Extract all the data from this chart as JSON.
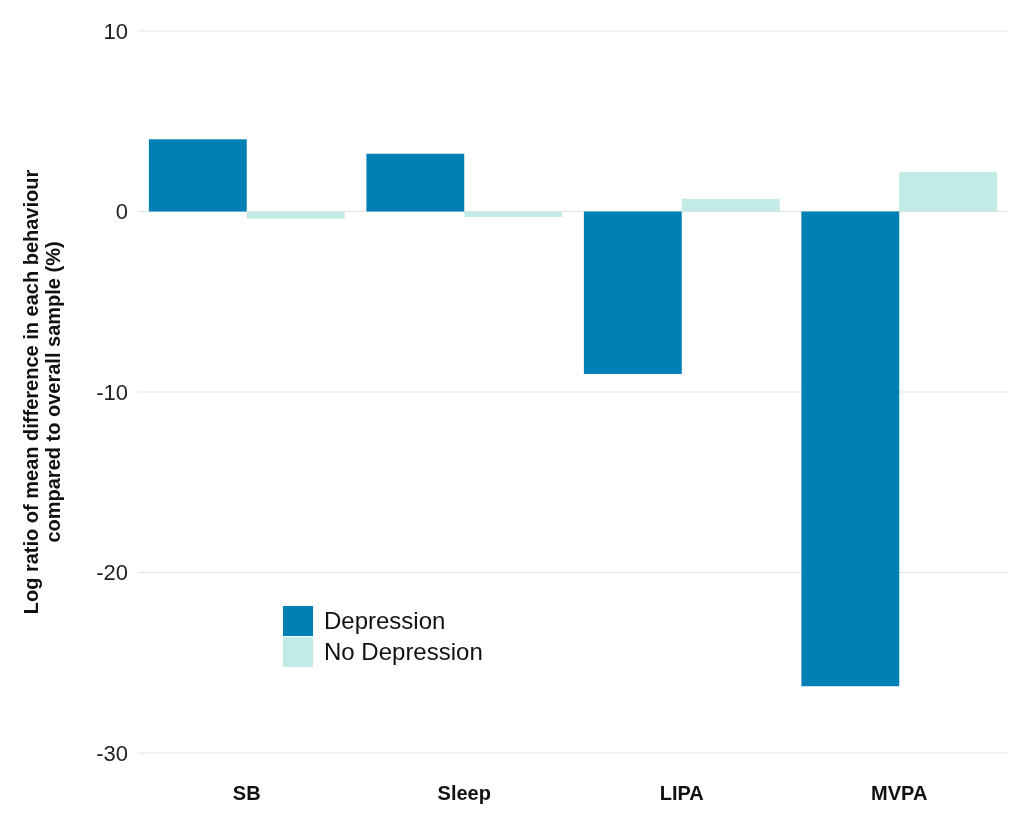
{
  "chart_data": {
    "type": "bar",
    "ylabel": "Log ratio of mean difference in each behaviour\ncompared to overall sample  (%)",
    "categories": [
      "SB",
      "Sleep",
      "LIPA",
      "MVPA"
    ],
    "series": [
      {
        "name": "Depression",
        "color": "#0080b4",
        "values": [
          4.0,
          3.2,
          -9.0,
          -26.3
        ]
      },
      {
        "name": "No Depression",
        "color": "#c2ebe6",
        "values": [
          -0.4,
          -0.3,
          0.7,
          2.2
        ]
      }
    ],
    "ylim": [
      -30,
      10
    ],
    "yticks": [
      -30,
      -20,
      -10,
      0,
      10
    ],
    "grid": "y",
    "legend": "bottom left"
  }
}
